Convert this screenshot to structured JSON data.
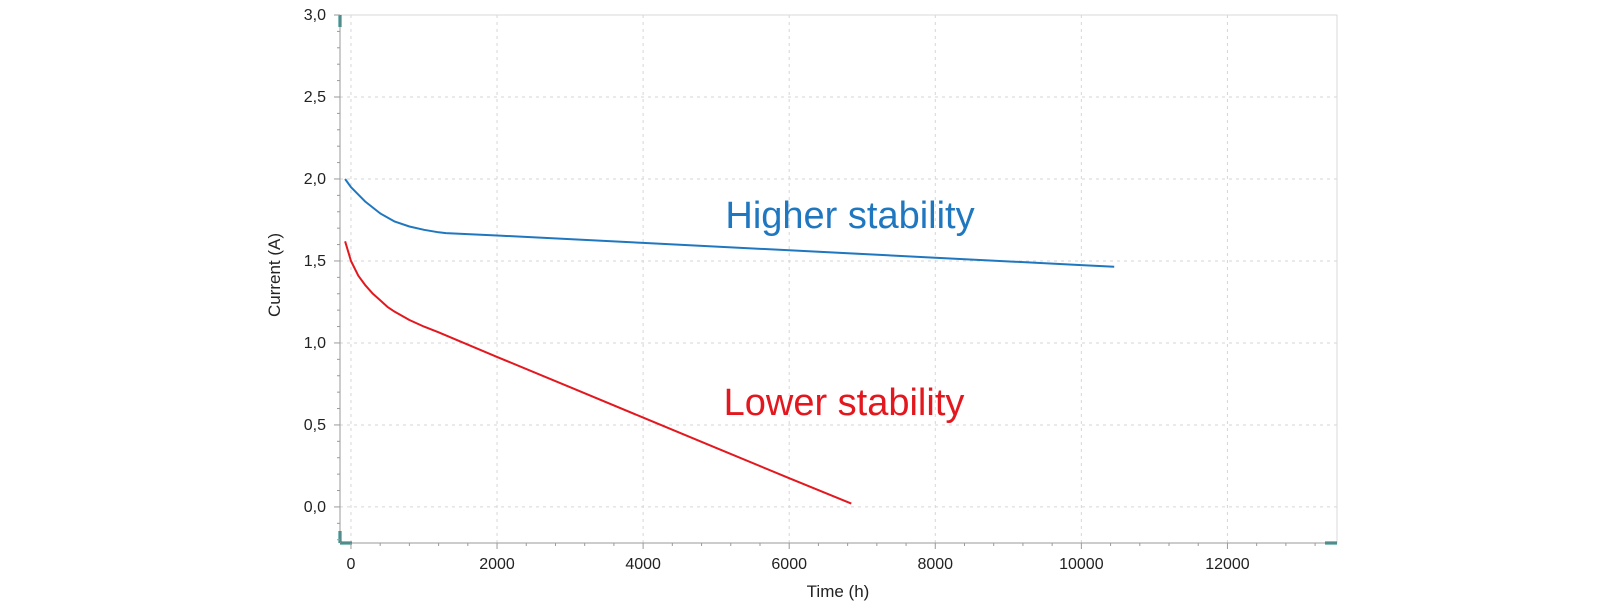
{
  "chart_data": {
    "type": "line",
    "title": "",
    "xlabel": "Time (h)",
    "ylabel": "Current (A)",
    "xlim": [
      -150,
      13500
    ],
    "ylim": [
      -0.22,
      3.0
    ],
    "x_ticks": [
      0,
      2000,
      4000,
      6000,
      8000,
      10000,
      12000
    ],
    "x_tick_labels": [
      "0",
      "2000",
      "4000",
      "6000",
      "8000",
      "10000",
      "12000"
    ],
    "y_ticks": [
      0.0,
      0.5,
      1.0,
      1.5,
      2.0,
      2.5,
      3.0
    ],
    "y_tick_labels": [
      "0,0",
      "0,5",
      "1,0",
      "1,5",
      "2,0",
      "2,5",
      "3,0"
    ],
    "grid": true,
    "legend": "none",
    "series": [
      {
        "label": "Higher stability",
        "color": "#1f77c0",
        "x": [
          -80,
          0,
          200,
          400,
          600,
          800,
          1000,
          1200,
          1300,
          2000,
          4000,
          6000,
          8000,
          10000,
          10450
        ],
        "y": [
          2.0,
          1.95,
          1.86,
          1.79,
          1.74,
          1.71,
          1.69,
          1.675,
          1.67,
          1.655,
          1.61,
          1.565,
          1.52,
          1.475,
          1.465
        ]
      },
      {
        "label": "Lower stability",
        "color": "#e3181f",
        "x": [
          -80,
          0,
          100,
          200,
          300,
          400,
          500,
          600,
          800,
          1000,
          1200,
          2000,
          3000,
          4000,
          5000,
          6000,
          6850
        ],
        "y": [
          1.62,
          1.5,
          1.41,
          1.35,
          1.3,
          1.26,
          1.22,
          1.19,
          1.14,
          1.1,
          1.065,
          0.915,
          0.73,
          0.545,
          0.36,
          0.175,
          0.02
        ]
      }
    ]
  }
}
